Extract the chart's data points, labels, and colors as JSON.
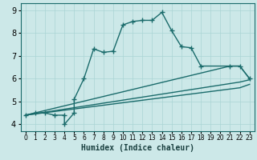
{
  "xlabel": "Humidex (Indice chaleur)",
  "bg_color": "#cce8e8",
  "grid_color": "#aad4d4",
  "line_color": "#1a6b6b",
  "spine_color": "#1a6b6b",
  "xlim": [
    -0.5,
    23.5
  ],
  "ylim": [
    3.7,
    9.3
  ],
  "xticks": [
    0,
    1,
    2,
    3,
    4,
    5,
    6,
    7,
    8,
    9,
    10,
    11,
    12,
    13,
    14,
    15,
    16,
    17,
    18,
    19,
    20,
    21,
    22,
    23
  ],
  "yticks": [
    4,
    5,
    6,
    7,
    8,
    9
  ],
  "lines": [
    {
      "x": [
        0,
        1,
        2,
        3,
        4,
        4,
        5,
        5,
        6,
        7,
        8,
        9,
        10,
        11,
        12,
        13,
        14,
        15,
        16,
        17,
        18,
        21,
        22,
        23
      ],
      "y": [
        4.4,
        4.5,
        4.5,
        4.4,
        4.4,
        4.0,
        4.5,
        5.1,
        6.0,
        7.3,
        7.15,
        7.2,
        8.35,
        8.5,
        8.55,
        8.55,
        8.9,
        8.1,
        7.4,
        7.35,
        6.55,
        6.55,
        6.55,
        6.0
      ],
      "marker": true
    },
    {
      "x": [
        0,
        21,
        22,
        23
      ],
      "y": [
        4.4,
        6.55,
        6.55,
        6.0
      ],
      "marker": false
    },
    {
      "x": [
        0,
        22,
        23
      ],
      "y": [
        4.4,
        5.85,
        5.95
      ],
      "marker": false
    },
    {
      "x": [
        0,
        22,
        23
      ],
      "y": [
        4.4,
        5.6,
        5.75
      ],
      "marker": false
    }
  ]
}
